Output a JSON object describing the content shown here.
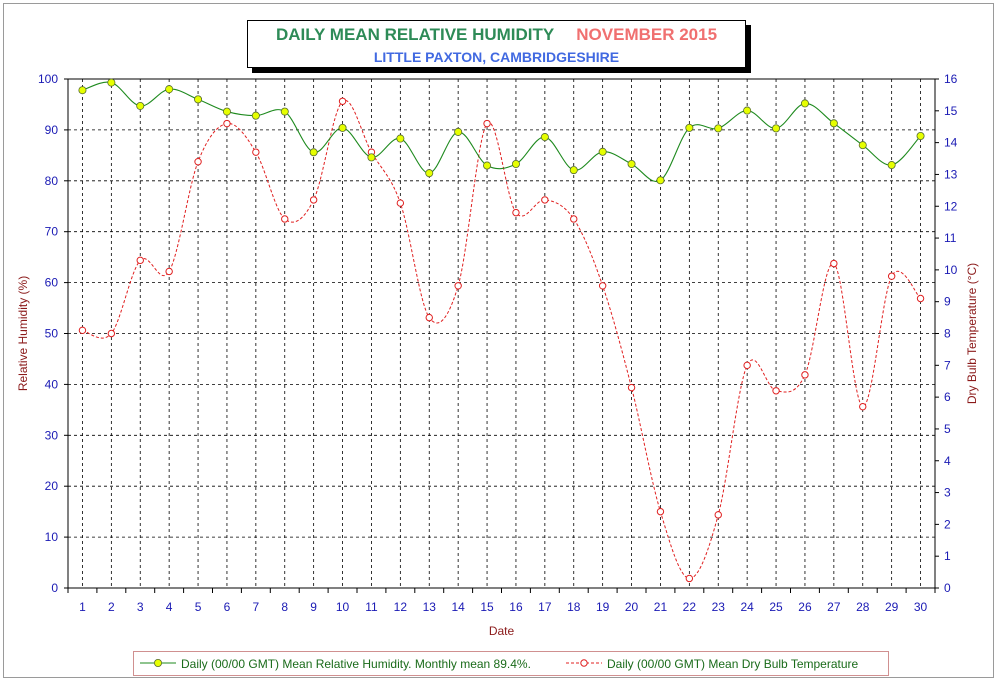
{
  "title": {
    "main": "DAILY MEAN RELATIVE HUMIDITY",
    "month": "NOVEMBER 2015",
    "location": "LITTLE PAXTON, CAMBRIDGESHIRE"
  },
  "colors": {
    "rh_line": "#1e8a1e",
    "rh_marker": "#e6ff00",
    "temp_line": "#e02020",
    "left_axis_label": "#8b1a1a",
    "right_axis_label": "#8b1a1a",
    "tick_label": "#1a1ab4",
    "grid": "#000000"
  },
  "chart_data": {
    "type": "line",
    "title": "DAILY MEAN RELATIVE HUMIDITY   NOVEMBER 2015",
    "subtitle": "LITTLE PAXTON, CAMBRIDGESHIRE",
    "xlabel": "Date",
    "ylabel": "Relative Humidity (%)",
    "y2label": "Dry Bulb Temperature (°C)",
    "x": [
      1,
      2,
      3,
      4,
      5,
      6,
      7,
      8,
      9,
      10,
      11,
      12,
      13,
      14,
      15,
      16,
      17,
      18,
      19,
      20,
      21,
      22,
      23,
      24,
      25,
      26,
      27,
      28,
      29,
      30
    ],
    "ylim": [
      0,
      100
    ],
    "y2lim": [
      0,
      16
    ],
    "yticks": [
      0,
      10,
      20,
      30,
      40,
      50,
      60,
      70,
      80,
      90,
      100
    ],
    "y2ticks": [
      0,
      1,
      2,
      3,
      4,
      5,
      6,
      7,
      8,
      9,
      10,
      11,
      12,
      13,
      14,
      15,
      16
    ],
    "grid": true,
    "legend_position": "bottom",
    "series": [
      {
        "name": "Daily (00/00 GMT) Mean Relative Humidity. Monthly mean 89.4%.",
        "axis": "left",
        "values": [
          97.8,
          99.3,
          94.7,
          98.0,
          96.0,
          93.6,
          92.8,
          93.6,
          85.6,
          90.4,
          84.6,
          88.3,
          81.5,
          89.6,
          83.0,
          83.3,
          88.6,
          82.1,
          85.7,
          83.3,
          80.1,
          90.4,
          90.3,
          93.8,
          90.3,
          95.2,
          91.3,
          87.0,
          83.1,
          88.8
        ]
      },
      {
        "name": "Daily (00/00 GMT) Mean Dry Bulb Temperature",
        "axis": "right",
        "values": [
          8.1,
          8.0,
          10.3,
          9.95,
          13.4,
          14.6,
          13.7,
          11.6,
          12.2,
          15.3,
          13.7,
          12.1,
          8.5,
          9.5,
          14.6,
          11.8,
          12.2,
          11.6,
          9.5,
          6.3,
          2.4,
          0.3,
          2.3,
          7.0,
          6.2,
          6.7,
          10.2,
          5.7,
          9.8,
          9.1
        ]
      }
    ]
  }
}
